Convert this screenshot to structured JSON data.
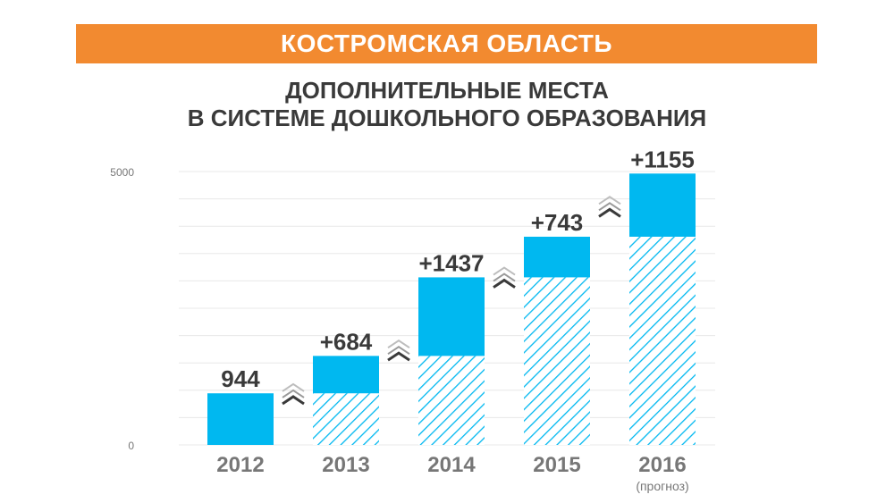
{
  "header": {
    "region": "КОСТРОМСКАЯ ОБЛАСТЬ",
    "title_line1": "ДОПОЛНИТЕЛЬНЫЕ МЕСТА",
    "title_line2": "В СИСТЕМЕ ДОШКОЛЬНОГО ОБРАЗОВАНИЯ"
  },
  "colors": {
    "banner": "#f28a30",
    "bar": "#00b8f0",
    "hatch": "#00b8f0",
    "text": "#3a3a3a",
    "grid": "#e8e8e8"
  },
  "chart_data": {
    "type": "bar",
    "stacked": true,
    "categories": [
      "2012",
      "2013",
      "2014",
      "2015",
      "2016"
    ],
    "category_notes": [
      "",
      "",
      "",
      "",
      "(прогноз)"
    ],
    "base_values": [
      0,
      944,
      1628,
      3065,
      3808
    ],
    "added_values": [
      944,
      684,
      1437,
      743,
      1155
    ],
    "data_labels": [
      "944",
      "+684",
      "+1437",
      "+743",
      "+1155"
    ],
    "y_ticks": [
      "0",
      "5000"
    ],
    "ylim": [
      0,
      5000
    ],
    "grid": true
  }
}
